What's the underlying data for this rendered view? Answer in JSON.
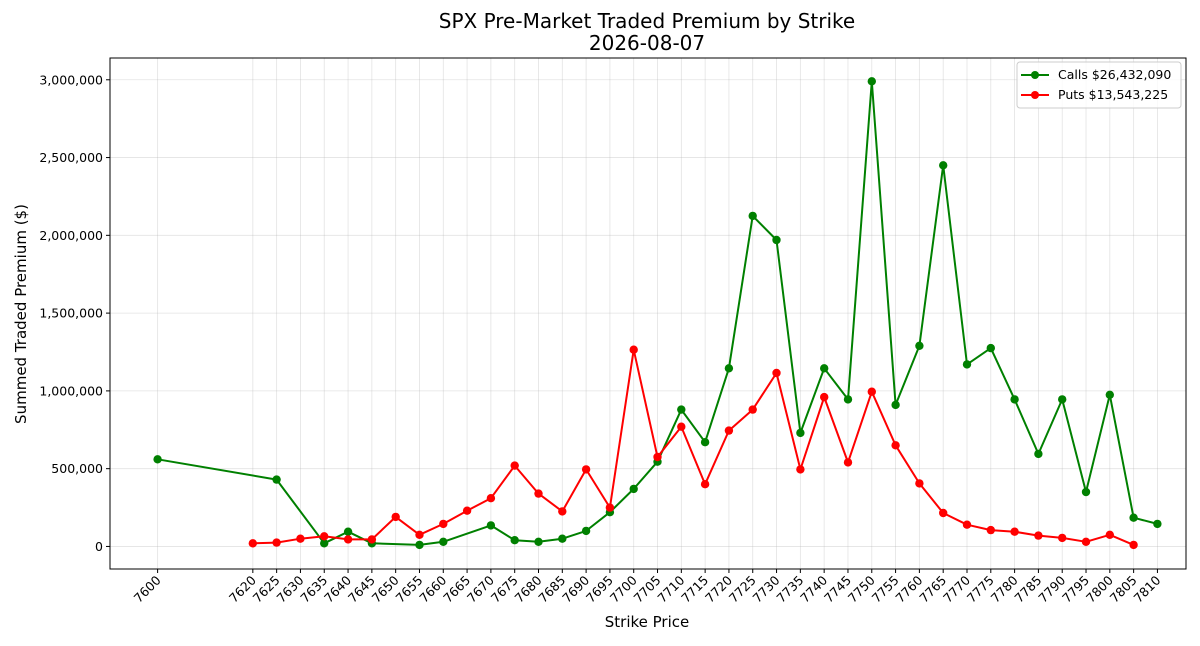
{
  "chart_data": {
    "type": "line",
    "title": "SPX Pre-Market Traded Premium by Strike",
    "subtitle": "2026-08-07",
    "xlabel": "Strike Price",
    "ylabel": "Summed Traded Premium ($)",
    "x_ticks": [
      7600,
      7620,
      7625,
      7630,
      7635,
      7640,
      7645,
      7650,
      7655,
      7660,
      7665,
      7670,
      7675,
      7680,
      7685,
      7690,
      7695,
      7700,
      7705,
      7710,
      7715,
      7720,
      7725,
      7730,
      7735,
      7740,
      7745,
      7750,
      7755,
      7760,
      7765,
      7770,
      7775,
      7780,
      7785,
      7790,
      7795,
      7800,
      7805,
      7810
    ],
    "y_ticks": [
      0,
      500000,
      1000000,
      1500000,
      2000000,
      2500000,
      3000000
    ],
    "y_tick_labels": [
      "0",
      "500,000",
      "1,000,000",
      "1,500,000",
      "2,000,000",
      "2,500,000",
      "3,000,000"
    ],
    "xlim": [
      7590,
      7816
    ],
    "ylim": [
      -145000,
      3140000
    ],
    "grid": true,
    "legend_position": "top-right",
    "series": [
      {
        "name": "Calls $26,432,090",
        "color": "#008000",
        "x": [
          7600,
          7625,
          7635,
          7640,
          7645,
          7655,
          7660,
          7670,
          7675,
          7680,
          7685,
          7690,
          7695,
          7700,
          7705,
          7710,
          7715,
          7720,
          7725,
          7730,
          7735,
          7740,
          7745,
          7750,
          7755,
          7760,
          7765,
          7770,
          7775,
          7780,
          7785,
          7790,
          7795,
          7800,
          7805,
          7810
        ],
        "y": [
          560000,
          430000,
          20000,
          95000,
          20000,
          10000,
          30000,
          135000,
          40000,
          30000,
          50000,
          100000,
          220000,
          370000,
          545000,
          880000,
          670000,
          1145000,
          2125000,
          1970000,
          730000,
          1145000,
          945000,
          2990000,
          910000,
          1290000,
          2450000,
          1170000,
          1275000,
          945000,
          595000,
          945000,
          350000,
          975000,
          185000,
          145000
        ]
      },
      {
        "name": "Puts $13,543,225",
        "color": "#ff0000",
        "x": [
          7620,
          7625,
          7630,
          7635,
          7640,
          7645,
          7650,
          7655,
          7660,
          7665,
          7670,
          7675,
          7680,
          7685,
          7690,
          7695,
          7700,
          7705,
          7710,
          7715,
          7720,
          7725,
          7730,
          7735,
          7740,
          7745,
          7750,
          7755,
          7760,
          7765,
          7770,
          7775,
          7780,
          7785,
          7790,
          7795,
          7800,
          7805
        ],
        "y": [
          20000,
          25000,
          50000,
          65000,
          45000,
          45000,
          190000,
          75000,
          145000,
          230000,
          310000,
          520000,
          340000,
          225000,
          495000,
          250000,
          1265000,
          575000,
          770000,
          400000,
          745000,
          880000,
          1115000,
          495000,
          960000,
          540000,
          995000,
          650000,
          405000,
          215000,
          140000,
          105000,
          95000,
          70000,
          55000,
          30000,
          75000,
          10000
        ]
      }
    ]
  }
}
